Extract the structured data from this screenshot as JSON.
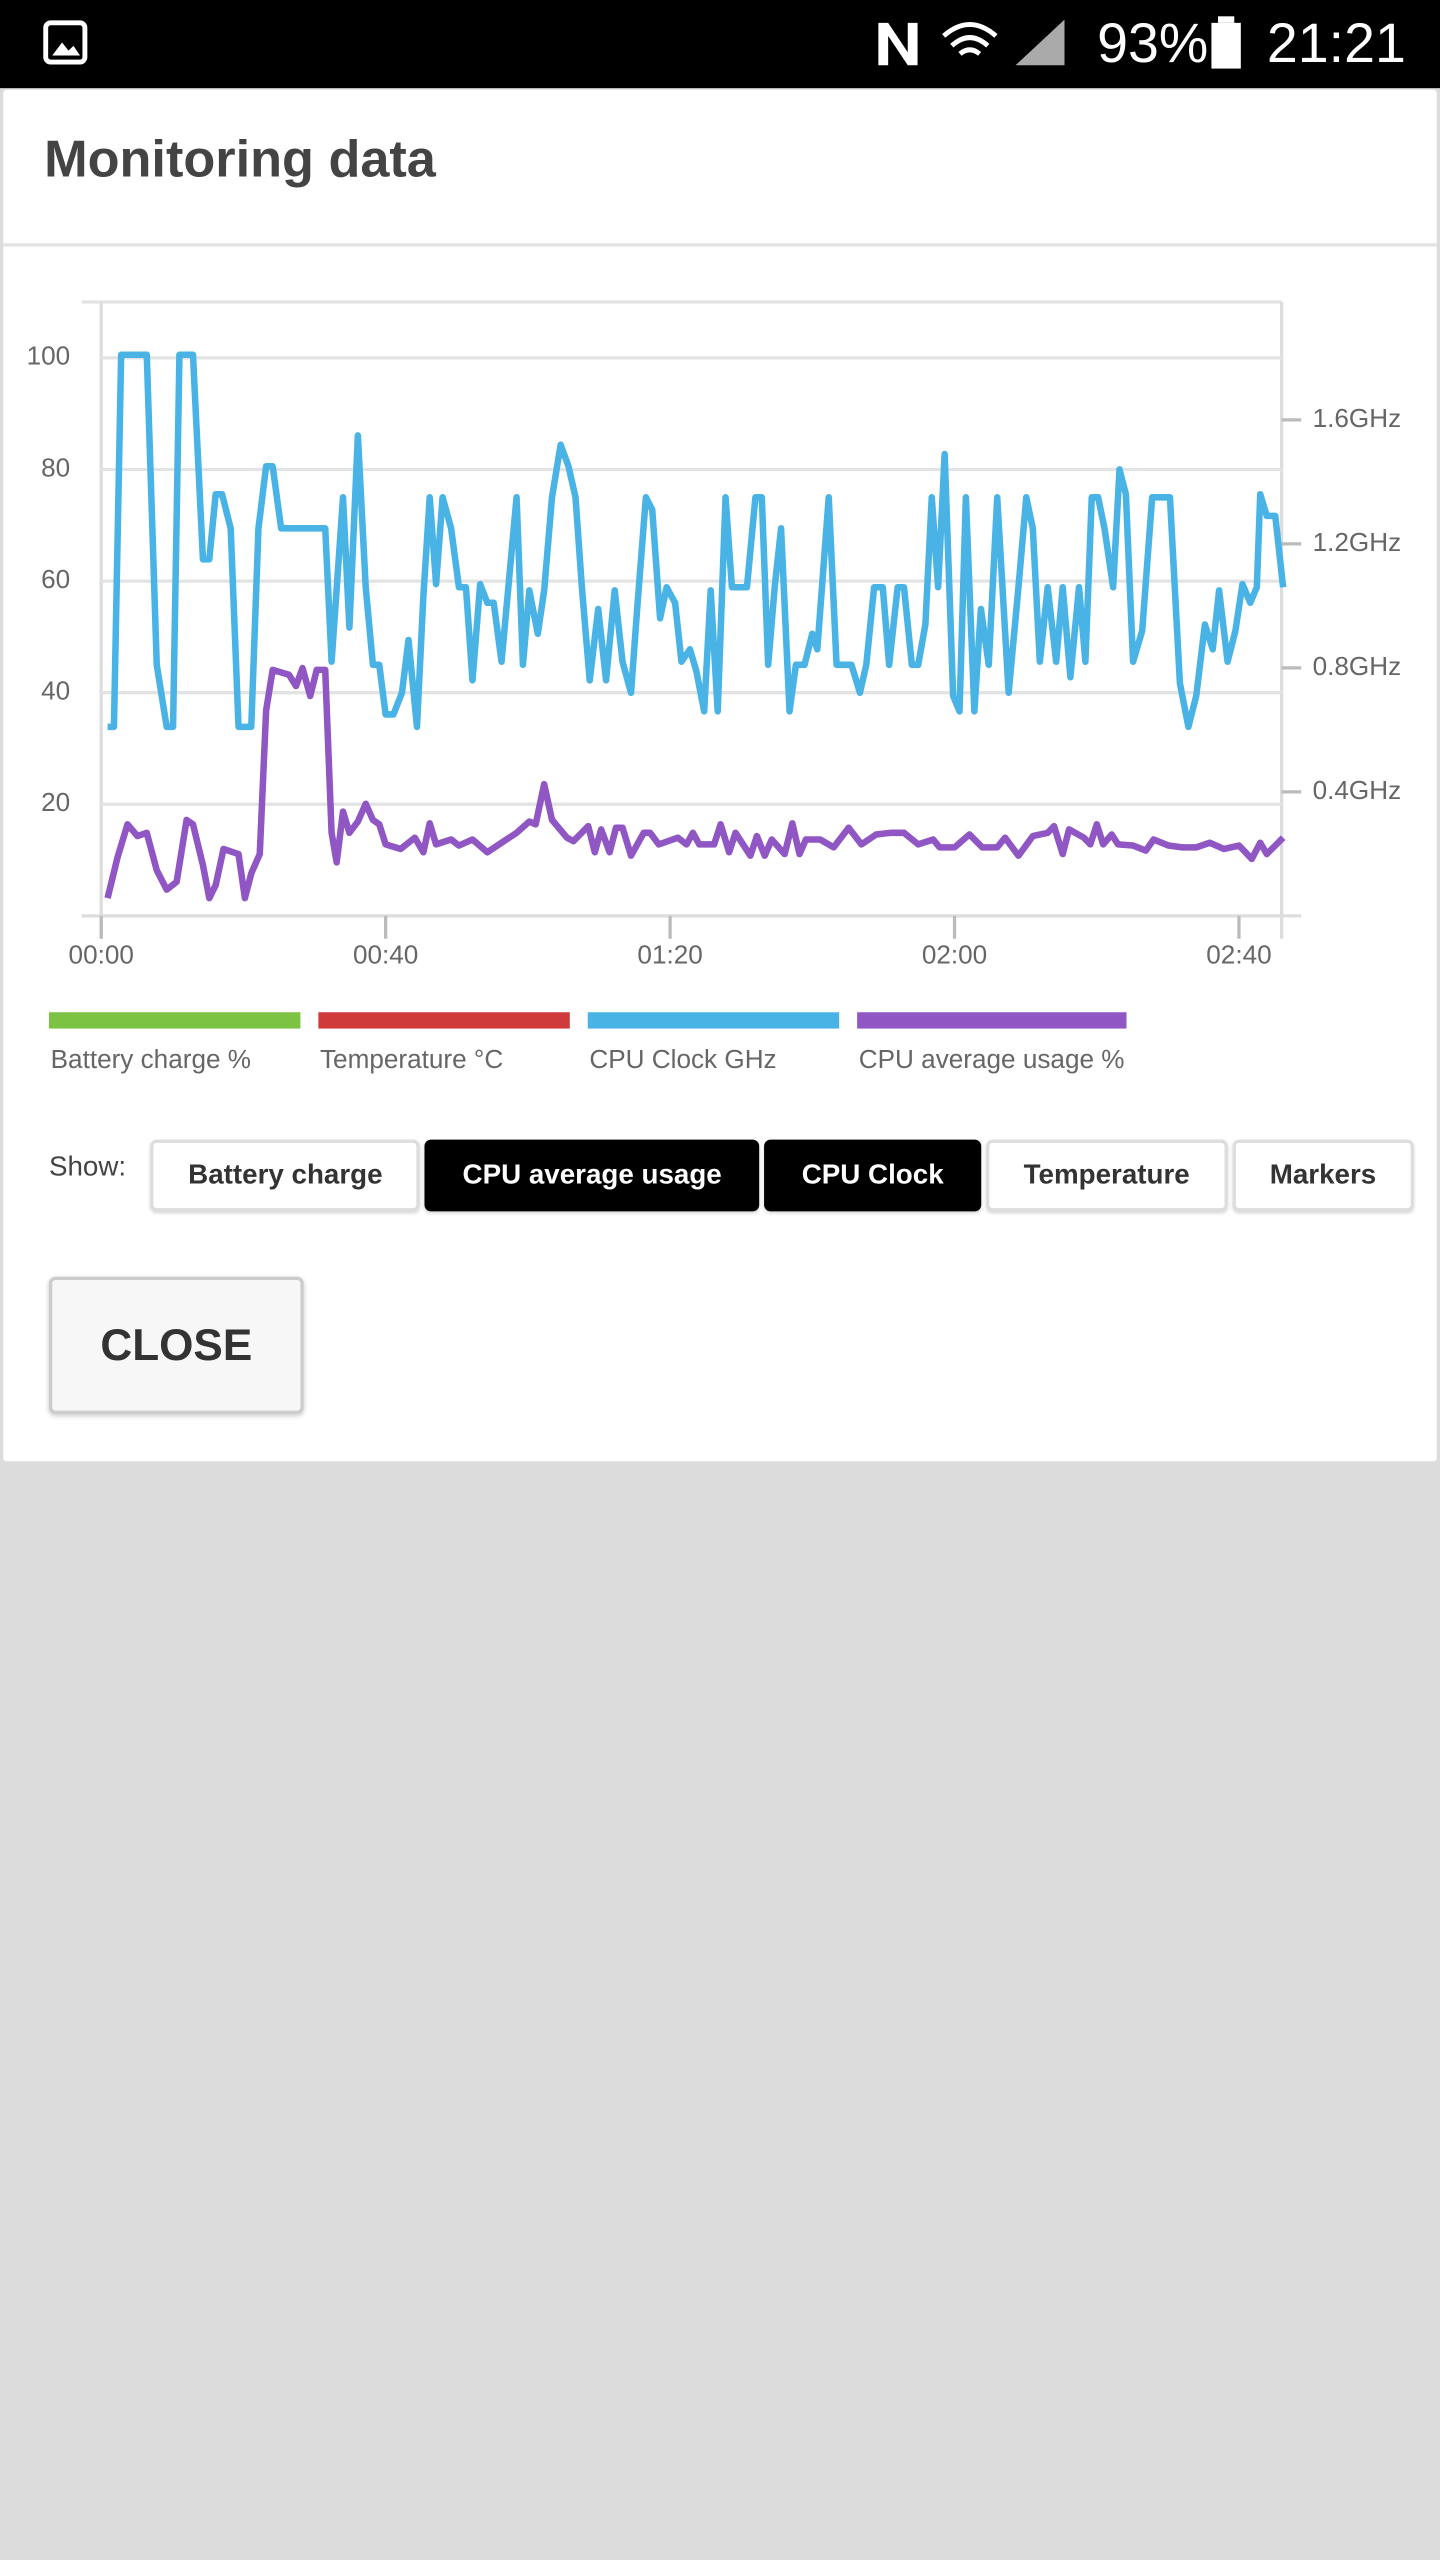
{
  "status_bar": {
    "battery": "93%",
    "time": "21:21"
  },
  "dialog": {
    "title": "Monitoring data",
    "show_label": "Show:",
    "toggles": [
      {
        "label": "Battery charge",
        "active": false
      },
      {
        "label": "CPU average usage",
        "active": true
      },
      {
        "label": "CPU Clock",
        "active": true
      },
      {
        "label": "Temperature",
        "active": false
      },
      {
        "label": "Markers",
        "active": false
      }
    ],
    "close": "CLOSE"
  },
  "chart_data": {
    "type": "line",
    "xlim": [
      0,
      166
    ],
    "xticks": [
      {
        "value": 0,
        "label": "00:00"
      },
      {
        "value": 40,
        "label": "00:40"
      },
      {
        "value": 80,
        "label": "01:20"
      },
      {
        "value": 120,
        "label": "02:00"
      },
      {
        "value": 160,
        "label": "02:40"
      }
    ],
    "ylim": [
      0,
      110
    ],
    "yticks": [
      20,
      40,
      60,
      80,
      100
    ],
    "y2lim": [
      0,
      1.98
    ],
    "y2ticks": [
      {
        "value": 0.4,
        "label": "0.4GHz"
      },
      {
        "value": 0.8,
        "label": "0.8GHz"
      },
      {
        "value": 1.2,
        "label": "1.2GHz"
      },
      {
        "value": 1.6,
        "label": "1.6GHz"
      }
    ],
    "grid": true,
    "series": [
      {
        "name": "Battery charge %",
        "color": "#7cc243"
      },
      {
        "name": "Temperature °C",
        "color": "#cf3b3b"
      },
      {
        "name": "CPU Clock GHz",
        "color": "#4ab3e6",
        "axis": "y2",
        "x": [
          0.9,
          1.8,
          2.8,
          6.4,
          7.8,
          9.2,
          10.1,
          11.0,
          12.9,
          14.3,
          15.2,
          16.1,
          17.0,
          18.2,
          19.3,
          21.1,
          22.1,
          23.2,
          24.1,
          25.3,
          31.5,
          32.4,
          34.0,
          34.9,
          36.1,
          37.2,
          38.2,
          39.1,
          40.0,
          41.1,
          42.3,
          43.2,
          44.4,
          45.3,
          46.2,
          47.1,
          48.0,
          49.2,
          50.3,
          51.3,
          52.2,
          53.3,
          54.3,
          55.2,
          56.3,
          58.4,
          59.3,
          60.2,
          61.4,
          62.3,
          63.4,
          64.6,
          65.7,
          66.7,
          67.6,
          68.7,
          69.9,
          71.0,
          72.2,
          73.3,
          74.5,
          75.4,
          76.6,
          77.5,
          78.6,
          79.5,
          80.7,
          81.6,
          82.8,
          83.7,
          84.8,
          85.7,
          86.7,
          87.8,
          88.7,
          90.8,
          92.0,
          92.9,
          93.8,
          94.7,
          95.6,
          96.8,
          97.7,
          98.9,
          100.0,
          100.7,
          102.3,
          103.4,
          105.5,
          106.7,
          107.6,
          108.7,
          109.9,
          110.8,
          112.0,
          112.9,
          114.0,
          114.9,
          115.9,
          116.8,
          117.7,
          118.6,
          119.8,
          120.7,
          121.6,
          122.8,
          123.7,
          124.8,
          126.0,
          127.6,
          129.0,
          130.1,
          131.0,
          132.0,
          133.1,
          134.3,
          135.2,
          136.3,
          137.5,
          138.4,
          139.3,
          140.2,
          141.1,
          142.3,
          143.2,
          144.1,
          145.1,
          146.4,
          147.8,
          150.3,
          151.7,
          152.9,
          154.0,
          155.2,
          156.3,
          157.2,
          158.4,
          159.5,
          160.5,
          161.6,
          162.5,
          163.0,
          163.9,
          165.1,
          166.2
        ],
        "values": [
          0.61,
          0.61,
          1.81,
          1.81,
          0.81,
          0.61,
          0.61,
          1.81,
          1.81,
          1.15,
          1.15,
          1.36,
          1.36,
          1.25,
          0.61,
          0.61,
          1.25,
          1.45,
          1.45,
          1.25,
          1.25,
          0.82,
          1.35,
          0.93,
          1.55,
          1.06,
          0.81,
          0.81,
          0.65,
          0.65,
          0.72,
          0.89,
          0.61,
          1.03,
          1.35,
          1.07,
          1.35,
          1.25,
          1.06,
          1.06,
          0.76,
          1.07,
          1.01,
          1.01,
          0.82,
          1.35,
          0.81,
          1.05,
          0.91,
          1.05,
          1.35,
          1.52,
          1.45,
          1.35,
          1.06,
          0.76,
          0.99,
          0.76,
          1.05,
          0.82,
          0.72,
          1.0,
          1.35,
          1.31,
          0.96,
          1.06,
          1.01,
          0.82,
          0.86,
          0.79,
          0.66,
          1.05,
          0.66,
          1.35,
          1.06,
          1.06,
          1.35,
          1.35,
          0.81,
          1.06,
          1.25,
          0.66,
          0.81,
          0.81,
          0.91,
          0.86,
          1.35,
          0.81,
          0.81,
          0.72,
          0.81,
          1.06,
          1.06,
          0.81,
          1.06,
          1.06,
          0.81,
          0.81,
          0.94,
          1.35,
          1.06,
          1.49,
          0.71,
          0.66,
          1.35,
          0.66,
          0.99,
          0.81,
          1.35,
          0.72,
          1.06,
          1.35,
          1.25,
          0.82,
          1.06,
          0.82,
          1.06,
          0.77,
          1.06,
          0.82,
          1.35,
          1.35,
          1.25,
          1.06,
          1.44,
          1.36,
          0.82,
          0.92,
          1.35,
          1.35,
          0.75,
          0.61,
          0.71,
          0.94,
          0.86,
          1.05,
          0.82,
          0.92,
          1.07,
          1.01,
          1.06,
          1.36,
          1.29,
          1.29,
          1.06
        ]
      },
      {
        "name": "CPU average usage %",
        "color": "#9056c4",
        "x": [
          0.9,
          2.3,
          3.7,
          5.1,
          6.4,
          7.8,
          9.2,
          10.6,
          12.0,
          12.9,
          14.3,
          15.2,
          16.1,
          17.2,
          19.3,
          20.2,
          21.1,
          22.3,
          23.2,
          24.1,
          26.4,
          27.4,
          28.3,
          29.4,
          30.3,
          31.5,
          32.4,
          33.1,
          34.0,
          34.9,
          36.1,
          37.2,
          38.2,
          39.1,
          40.0,
          42.1,
          44.1,
          45.3,
          46.2,
          47.1,
          49.2,
          50.3,
          52.2,
          54.3,
          56.3,
          58.4,
          60.2,
          61.1,
          62.3,
          63.4,
          65.5,
          66.4,
          68.5,
          69.4,
          70.3,
          71.5,
          72.4,
          73.3,
          74.5,
          76.3,
          77.2,
          78.4,
          81.1,
          82.3,
          83.2,
          84.1,
          86.2,
          87.1,
          88.3,
          89.2,
          91.3,
          92.2,
          93.3,
          94.3,
          96.1,
          97.2,
          98.2,
          99.1,
          101.1,
          103.0,
          105.1,
          106.9,
          109.0,
          111.0,
          112.9,
          114.9,
          117.0,
          117.9,
          120.0,
          122.1,
          123.9,
          126.0,
          127.1,
          129.0,
          131.0,
          133.1,
          134.0,
          135.2,
          136.1,
          138.2,
          139.1,
          140.0,
          140.9,
          142.1,
          143.0,
          145.1,
          146.9,
          148.0,
          150.1,
          152.0,
          154.0,
          155.9,
          157.9,
          160.0,
          161.8,
          163.0,
          163.9,
          166.2
        ],
        "values": [
          3.2,
          10.5,
          16.4,
          14.3,
          14.9,
          8.2,
          4.7,
          6.1,
          17.2,
          16.4,
          9.1,
          3.2,
          5.5,
          12.0,
          11.1,
          3.2,
          7.6,
          11.1,
          36.8,
          44.1,
          43.2,
          41.2,
          44.4,
          39.4,
          44.1,
          44.1,
          14.9,
          9.6,
          18.7,
          14.9,
          16.9,
          20.1,
          17.2,
          16.4,
          12.8,
          12.0,
          14.0,
          11.4,
          16.6,
          12.8,
          13.7,
          12.6,
          13.7,
          11.4,
          13.1,
          14.9,
          16.9,
          16.4,
          23.6,
          17.2,
          14.0,
          13.4,
          16.1,
          11.4,
          15.5,
          11.4,
          15.8,
          15.8,
          10.8,
          14.9,
          14.9,
          12.8,
          14.0,
          12.8,
          14.9,
          12.8,
          12.8,
          16.4,
          11.4,
          14.9,
          10.8,
          14.3,
          10.8,
          13.7,
          11.1,
          16.6,
          11.1,
          13.7,
          13.7,
          12.3,
          15.8,
          12.8,
          14.6,
          14.9,
          14.9,
          12.8,
          13.7,
          12.3,
          12.3,
          14.6,
          12.3,
          12.3,
          14.0,
          10.8,
          14.3,
          14.9,
          16.1,
          11.1,
          15.5,
          14.0,
          12.8,
          16.4,
          12.8,
          14.6,
          12.8,
          12.6,
          11.7,
          13.7,
          12.6,
          12.3,
          12.3,
          13.1,
          12.0,
          12.6,
          10.2,
          13.1,
          11.1,
          14.0
        ]
      }
    ]
  }
}
